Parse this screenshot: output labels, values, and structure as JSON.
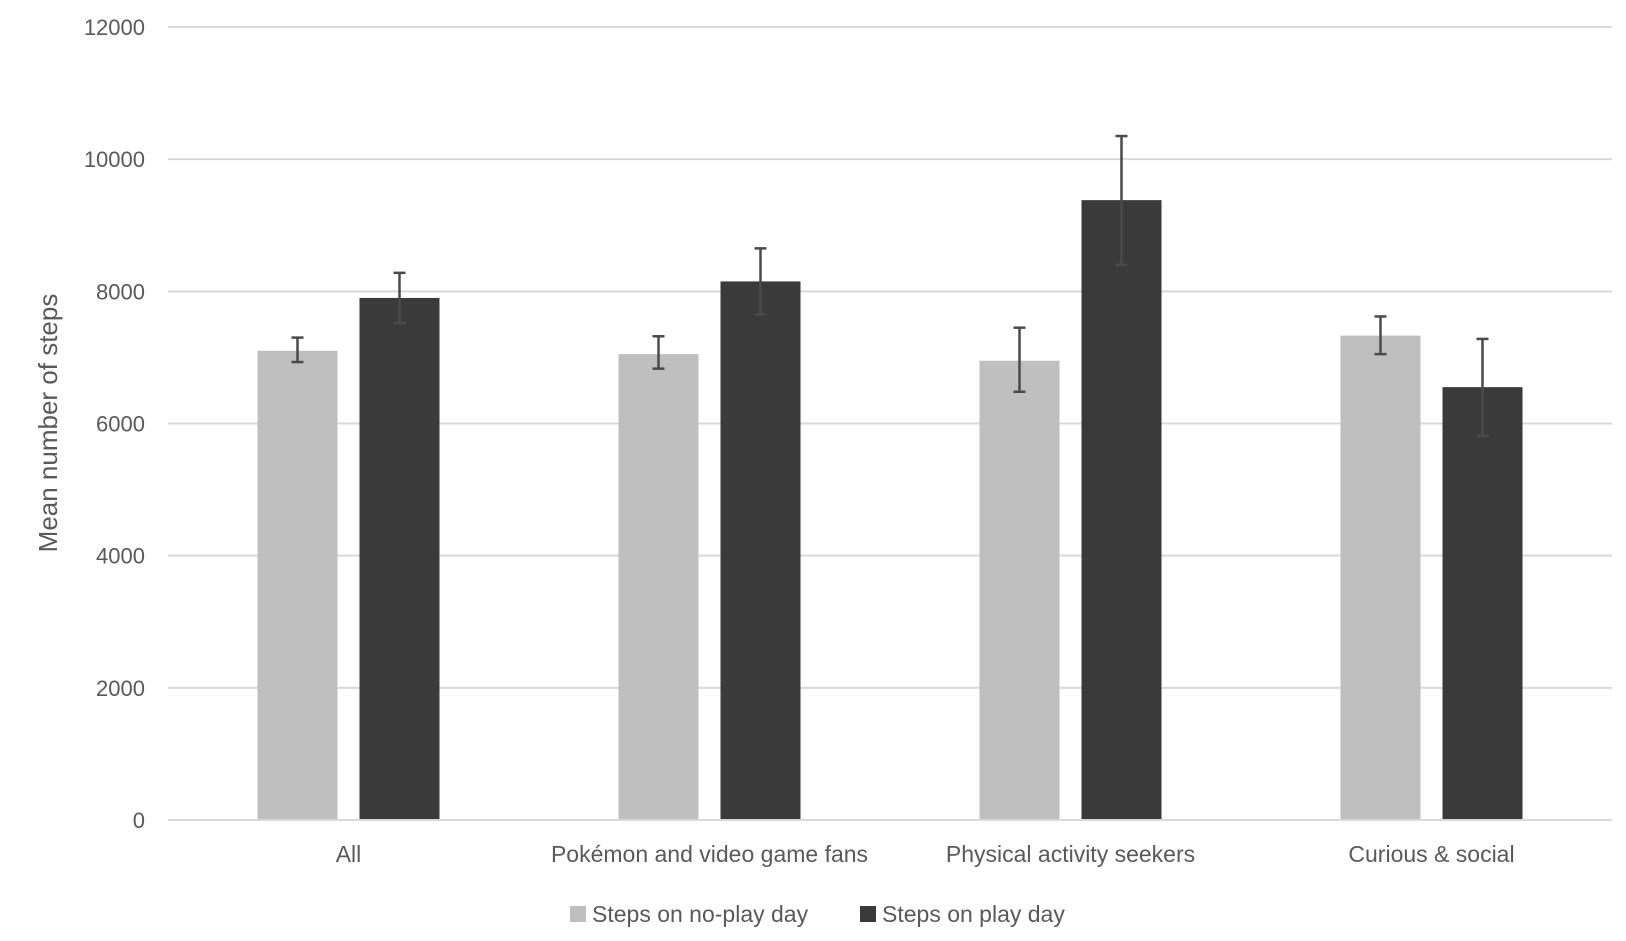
{
  "chart_data": {
    "type": "bar",
    "title": "",
    "xlabel": "",
    "ylabel": "Mean number of steps",
    "ylim": [
      0,
      12000
    ],
    "yticks": [
      0,
      2000,
      4000,
      6000,
      8000,
      10000,
      12000
    ],
    "grid": true,
    "legend_position": "bottom",
    "categories": [
      "All",
      "Pokémon and video game fans",
      "Physical activity seekers",
      "Curious & social"
    ],
    "series": [
      {
        "name": "Steps on no-play day",
        "color": "#bfbfbf",
        "values": [
          7100,
          7050,
          6950,
          7330
        ],
        "error_low": [
          6930,
          6830,
          6480,
          7050
        ],
        "error_high": [
          7300,
          7320,
          7450,
          7620
        ]
      },
      {
        "name": "Steps on play day",
        "color": "#3a3a3a",
        "values": [
          7900,
          8150,
          9380,
          6550
        ],
        "error_low": [
          7520,
          7650,
          8400,
          5810
        ],
        "error_high": [
          8280,
          8650,
          10350,
          7280
        ]
      }
    ]
  }
}
